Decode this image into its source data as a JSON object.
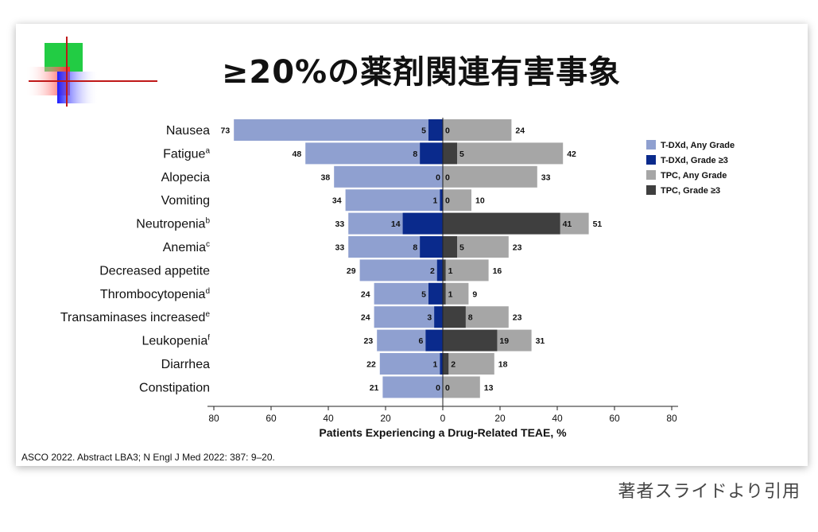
{
  "slide": {
    "title": "≥20%の薬剤関連有害事象",
    "citation": "ASCO 2022. Abstract LBA3; N Engl J Med 2022: 387: 9–20.",
    "credit": "著者スライドより引用",
    "logo": "colored-squares-crosshair-logo"
  },
  "colors": {
    "tdxd_any": "#8fa0d0",
    "tdxd_g3": "#0a2a8c",
    "tpc_any": "#a6a6a6",
    "tpc_g3": "#3f3f3f"
  },
  "chart_data": {
    "type": "bar",
    "orientation": "horizontal-diverging",
    "xlabel": "Patients Experiencing a Drug-Related TEAE, %",
    "xlim": [
      -80,
      80
    ],
    "xticks": [
      -80,
      -60,
      -40,
      -20,
      0,
      20,
      40,
      60,
      80
    ],
    "xtick_labels": [
      "80",
      "60",
      "40",
      "20",
      "0",
      "20",
      "40",
      "60",
      "80"
    ],
    "legend_position": "right",
    "categories": [
      {
        "name": "Nausea",
        "sup": ""
      },
      {
        "name": "Fatigue",
        "sup": "a"
      },
      {
        "name": "Alopecia",
        "sup": ""
      },
      {
        "name": "Vomiting",
        "sup": ""
      },
      {
        "name": "Neutropenia",
        "sup": "b"
      },
      {
        "name": "Anemia",
        "sup": "c"
      },
      {
        "name": "Decreased appetite",
        "sup": ""
      },
      {
        "name": "Thrombocytopenia",
        "sup": "d"
      },
      {
        "name": "Transaminases increased",
        "sup": "e"
      },
      {
        "name": "Leukopenia",
        "sup": "f"
      },
      {
        "name": "Diarrhea",
        "sup": ""
      },
      {
        "name": "Constipation",
        "sup": ""
      }
    ],
    "series": [
      {
        "name": "T-DXd, Any Grade",
        "side": "left",
        "values": [
          73,
          48,
          38,
          34,
          33,
          33,
          29,
          24,
          24,
          23,
          22,
          21
        ]
      },
      {
        "name": "T-DXd, Grade ≥3",
        "side": "left",
        "values": [
          5,
          8,
          0,
          1,
          14,
          8,
          2,
          5,
          3,
          6,
          1,
          0
        ]
      },
      {
        "name": "TPC, Any Grade",
        "side": "right",
        "values": [
          24,
          42,
          33,
          10,
          51,
          23,
          16,
          9,
          23,
          31,
          18,
          13
        ]
      },
      {
        "name": "TPC, Grade ≥3",
        "side": "right",
        "values": [
          0,
          5,
          0,
          0,
          41,
          5,
          1,
          1,
          8,
          19,
          2,
          0
        ]
      }
    ]
  }
}
